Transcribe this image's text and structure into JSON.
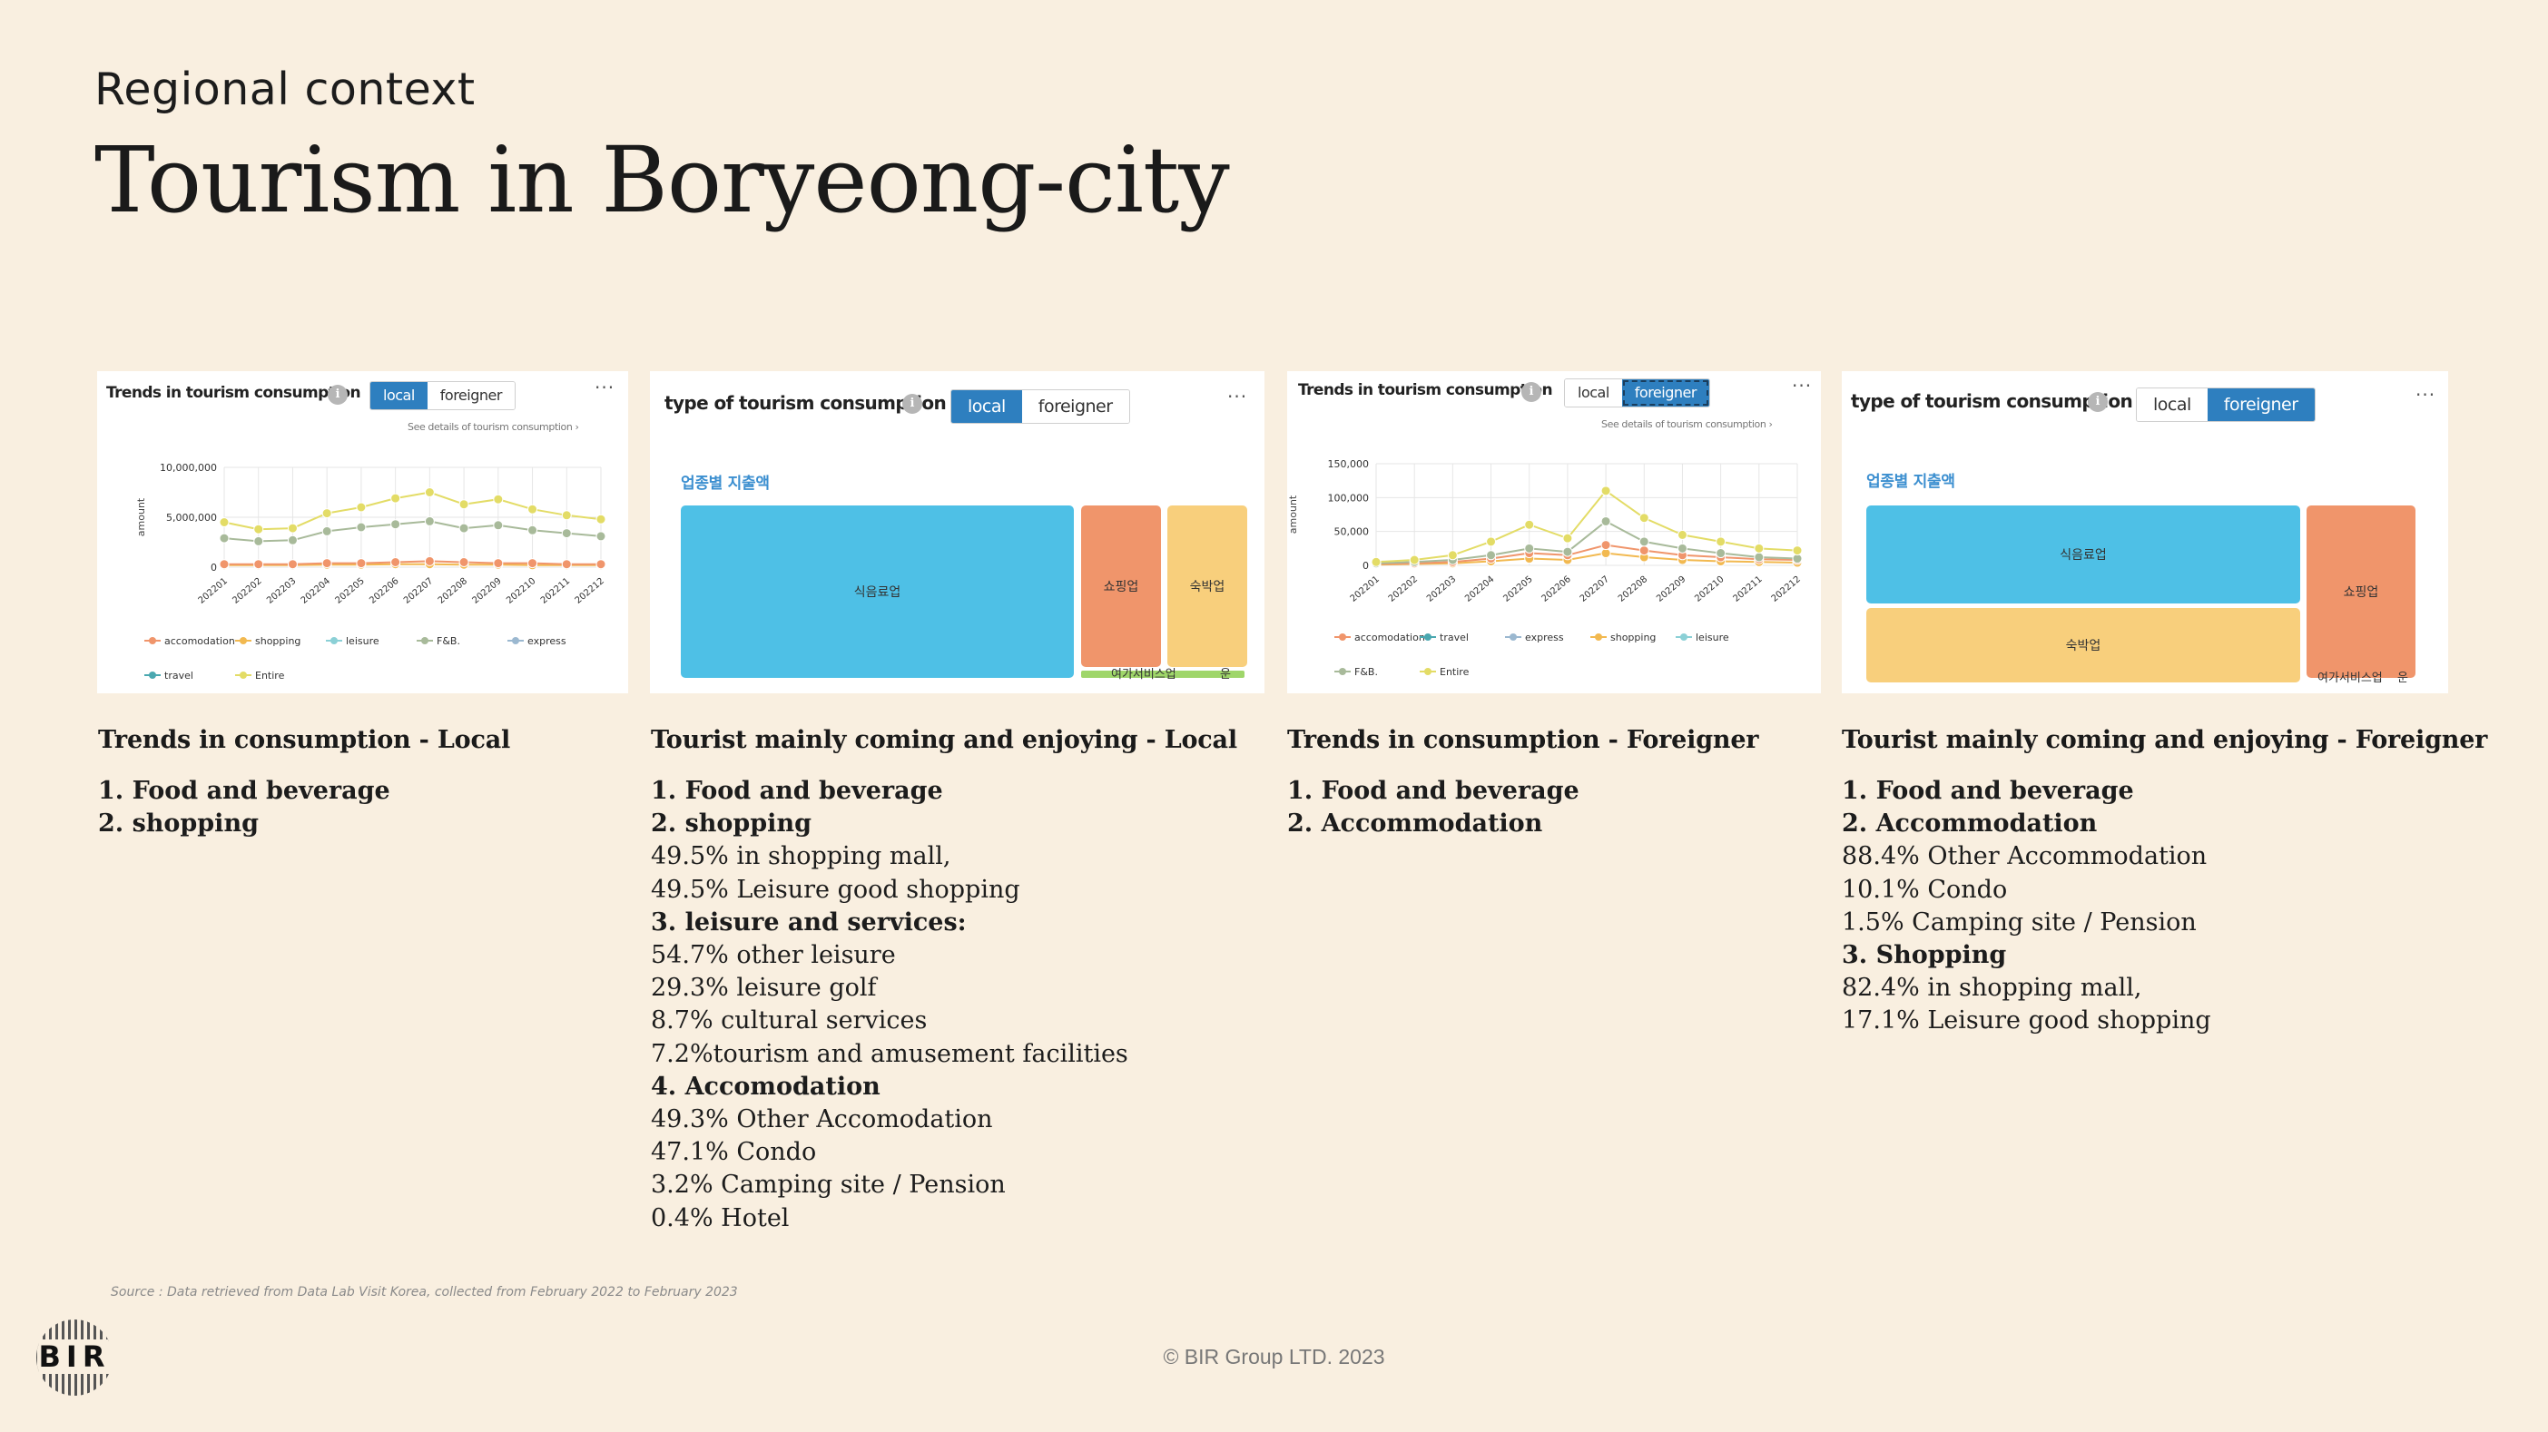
{
  "header": {
    "kicker": "Regional context",
    "title": "Tourism in Boryeong-city"
  },
  "panels": {
    "trend_local": {
      "heading": "Trends in tourism consumption",
      "info": "i",
      "toggle": [
        "local",
        "foreigner"
      ],
      "active": "local",
      "menu": "···",
      "see_details": "See details of tourism consumption ›",
      "ylabel": "amount",
      "yticks": [
        "10,000,000",
        "5,000,000",
        "0"
      ],
      "xticks": [
        "202201",
        "202202",
        "202203",
        "202204",
        "202205",
        "202206",
        "202207",
        "202208",
        "202209",
        "202210",
        "202211",
        "202212"
      ],
      "legend": [
        "accomodation",
        "shopping",
        "leisure",
        "F&B.",
        "express",
        "travel",
        "Entire"
      ]
    },
    "type_local": {
      "heading": "type of tourism consumption",
      "info": "i",
      "toggle": [
        "local",
        "foreigner"
      ],
      "active": "local",
      "menu": "···",
      "subhead": "업종별 지출액",
      "cells": [
        "식음료업",
        "쇼핑업",
        "숙박업"
      ],
      "bottom_labels": [
        "여가서비스업",
        "운"
      ]
    },
    "trend_foreign": {
      "heading": "Trends in tourism consumption",
      "info": "i",
      "toggle": [
        "local",
        "foreigner"
      ],
      "active": "foreigner",
      "menu": "···",
      "see_details": "See details of tourism consumption ›",
      "ylabel": "amount",
      "yticks": [
        "150,000",
        "100,000",
        "50,000",
        "0"
      ],
      "xticks": [
        "202201",
        "202202",
        "202203",
        "202204",
        "202205",
        "202206",
        "202207",
        "202208",
        "202209",
        "202210",
        "202211",
        "202212"
      ],
      "legend": [
        "accomodation",
        "travel",
        "express",
        "shopping",
        "leisure",
        "F&B.",
        "Entire"
      ]
    },
    "type_foreign": {
      "heading": "type of tourism consumption",
      "info": "i",
      "toggle": [
        "local",
        "foreigner"
      ],
      "active": "foreigner",
      "menu": "···",
      "subhead": "업종별 지출액",
      "cells": [
        "식음료업",
        "숙박업",
        "쇼핑업"
      ],
      "bottom_labels": [
        "여가서비스업",
        "운"
      ]
    }
  },
  "chart_data": [
    {
      "type": "line",
      "ylabel": "amount",
      "ylim": [
        0,
        10000000
      ],
      "x": [
        "202201",
        "202202",
        "202203",
        "202204",
        "202205",
        "202206",
        "202207",
        "202208",
        "202209",
        "202210",
        "202211",
        "202212"
      ],
      "series": [
        {
          "name": "Entire",
          "values": [
            4500000,
            3800000,
            3900000,
            5400000,
            6000000,
            6900000,
            7500000,
            6300000,
            6800000,
            5800000,
            5200000,
            4800000
          ]
        },
        {
          "name": "F&B.",
          "values": [
            2900000,
            2600000,
            2700000,
            3600000,
            4000000,
            4300000,
            4600000,
            3900000,
            4200000,
            3700000,
            3400000,
            3100000
          ]
        },
        {
          "name": "accomodation",
          "values": [
            300000,
            300000,
            300000,
            400000,
            400000,
            500000,
            600000,
            500000,
            400000,
            400000,
            300000,
            300000
          ]
        },
        {
          "name": "shopping",
          "values": [
            200000,
            200000,
            200000,
            250000,
            250000,
            300000,
            300000,
            250000,
            250000,
            200000,
            200000,
            200000
          ]
        }
      ]
    },
    {
      "type": "table",
      "layout": "treemap",
      "cells": [
        {
          "label": "식음료업",
          "value": 70
        },
        {
          "label": "쇼핑업",
          "value": 14
        },
        {
          "label": "숙박업",
          "value": 13
        },
        {
          "label": "여가서비스업",
          "value": 2
        },
        {
          "label": "운",
          "value": 1
        }
      ]
    },
    {
      "type": "line",
      "ylabel": "amount",
      "ylim": [
        0,
        150000
      ],
      "x": [
        "202201",
        "202202",
        "202203",
        "202204",
        "202205",
        "202206",
        "202207",
        "202208",
        "202209",
        "202210",
        "202211",
        "202212"
      ],
      "series": [
        {
          "name": "Entire",
          "values": [
            5000,
            8000,
            15000,
            35000,
            60000,
            40000,
            110000,
            70000,
            45000,
            35000,
            25000,
            22000
          ]
        },
        {
          "name": "F&B.",
          "values": [
            3000,
            5000,
            8000,
            15000,
            25000,
            20000,
            65000,
            35000,
            25000,
            18000,
            12000,
            10000
          ]
        },
        {
          "name": "accomodation",
          "values": [
            2000,
            3000,
            5000,
            10000,
            18000,
            15000,
            30000,
            22000,
            15000,
            12000,
            9000,
            8000
          ]
        },
        {
          "name": "shopping",
          "values": [
            1000,
            2000,
            3000,
            6000,
            10000,
            8000,
            18000,
            12000,
            8000,
            6000,
            5000,
            4000
          ]
        }
      ]
    },
    {
      "type": "table",
      "layout": "treemap",
      "cells": [
        {
          "label": "식음료업",
          "value": 45
        },
        {
          "label": "숙박업",
          "value": 32
        },
        {
          "label": "쇼핑업",
          "value": 20
        },
        {
          "label": "여가서비스업",
          "value": 2
        },
        {
          "label": "운",
          "value": 1
        }
      ]
    }
  ],
  "columns": [
    {
      "caption": "Trends in consumption - Local",
      "items": [
        {
          "text": "1. Food and beverage",
          "bold": true
        },
        {
          "text": "2. shopping",
          "bold": true
        }
      ]
    },
    {
      "caption": "Tourist mainly coming and enjoying - Local",
      "items": [
        {
          "text": "1. Food and beverage",
          "bold": true
        },
        {
          "text": "2. shopping",
          "bold": true
        },
        {
          "text": "49.5% in shopping mall,",
          "bold": false
        },
        {
          "text": "49.5% Leisure good shopping",
          "bold": false
        },
        {
          "text": "3. leisure and services:",
          "bold": true
        },
        {
          "text": "54.7% other leisure",
          "bold": false
        },
        {
          "text": "29.3% leisure golf",
          "bold": false
        },
        {
          "text": "8.7% cultural services",
          "bold": false
        },
        {
          "text": "7.2%tourism and amusement facilities",
          "bold": false
        },
        {
          "text": "4. Accomodation",
          "bold": true
        },
        {
          "text": "49.3% Other Accomodation",
          "bold": false
        },
        {
          "text": "47.1% Condo",
          "bold": false
        },
        {
          "text": "3.2% Camping site / Pension",
          "bold": false
        },
        {
          "text": "0.4% Hotel",
          "bold": false
        }
      ]
    },
    {
      "caption": "Trends in consumption - Foreigner",
      "items": [
        {
          "text": "1. Food and beverage",
          "bold": true
        },
        {
          "text": "2. Accommodation",
          "bold": true
        }
      ]
    },
    {
      "caption": "Tourist mainly coming and enjoying - Foreigner",
      "items": [
        {
          "text": "1. Food and beverage",
          "bold": true
        },
        {
          "text": "2. Accommodation",
          "bold": true
        },
        {
          "text": "88.4% Other Accommodation",
          "bold": false
        },
        {
          "text": "10.1% Condo",
          "bold": false
        },
        {
          "text": "1.5% Camping site / Pension",
          "bold": false
        },
        {
          "text": "3. Shopping",
          "bold": true
        },
        {
          "text": "82.4% in shopping mall,",
          "bold": false
        },
        {
          "text": "17.1% Leisure good shopping",
          "bold": false
        }
      ]
    }
  ],
  "footer": {
    "source": "Source : Data retrieved from Data Lab Visit Korea, collected from February 2022 to February 2023",
    "copyright": "© BIR Group LTD. 2023",
    "logo_text": "BIR"
  },
  "colors": {
    "background": "#f9efe0",
    "toggle_active": "#2e7fbf",
    "treemap_blue": "#4ec0e6",
    "treemap_orange": "#f0956b",
    "treemap_yellow": "#f8cf7c",
    "treemap_green": "#9fd66a"
  }
}
